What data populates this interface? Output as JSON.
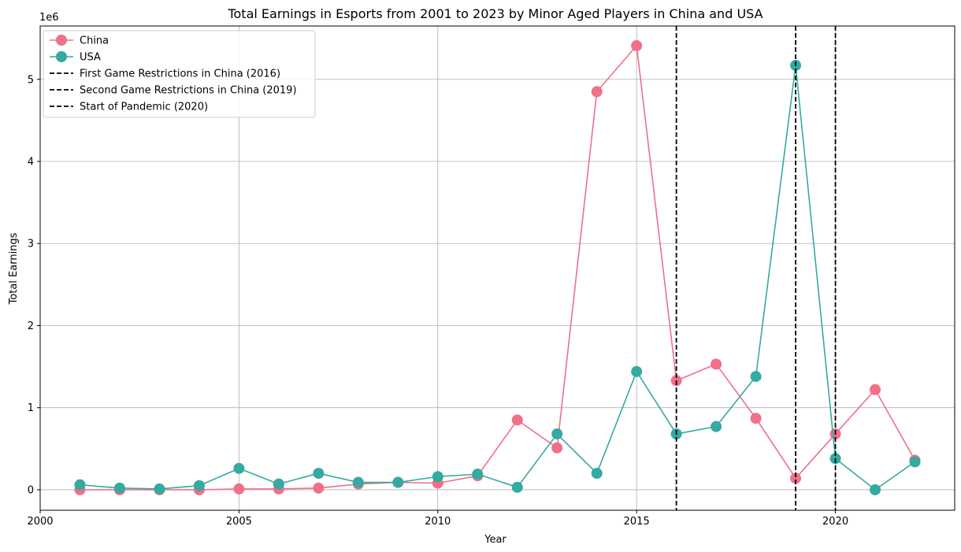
{
  "chart_data": {
    "type": "line",
    "title": "Total Earnings in Esports from 2001 to 2023 by Minor Aged Players in China and USA",
    "xlabel": "Year",
    "ylabel": "Total Earnings",
    "y_scale_label": "1e6",
    "xlim": [
      2000,
      2023
    ],
    "ylim": [
      -250000,
      5650000
    ],
    "x_ticks": [
      2000,
      2005,
      2010,
      2015,
      2020
    ],
    "y_ticks": [
      0,
      1000000,
      2000000,
      3000000,
      4000000,
      5000000
    ],
    "y_tick_labels": [
      "0",
      "1",
      "2",
      "3",
      "4",
      "5"
    ],
    "grid": true,
    "legend_position": "top-left",
    "x": [
      2001,
      2002,
      2003,
      2004,
      2005,
      2006,
      2007,
      2008,
      2009,
      2010,
      2011,
      2012,
      2013,
      2014,
      2015,
      2016,
      2017,
      2018,
      2019,
      2020,
      2021,
      2022
    ],
    "series": [
      {
        "name": "China",
        "color": "#f07089",
        "values": [
          0,
          0,
          0,
          0,
          10000,
          10000,
          20000,
          70000,
          90000,
          80000,
          170000,
          850000,
          510000,
          4850000,
          5410000,
          1330000,
          1530000,
          870000,
          140000,
          680000,
          1220000,
          360000
        ]
      },
      {
        "name": "USA",
        "color": "#34aaa0",
        "values": [
          60000,
          20000,
          10000,
          50000,
          260000,
          70000,
          200000,
          90000,
          90000,
          160000,
          190000,
          30000,
          680000,
          200000,
          1440000,
          680000,
          770000,
          1380000,
          5170000,
          380000,
          0,
          340000
        ]
      }
    ],
    "vlines": [
      {
        "name": "First Game Restrictions in China (2016)",
        "x": 2016,
        "color": "#000000",
        "style": "dashed"
      },
      {
        "name": "Second Game Restrictions in China (2019)",
        "x": 2019,
        "color": "#000000",
        "style": "dashed"
      },
      {
        "name": "Start of Pandemic (2020)",
        "x": 2020,
        "color": "#000000",
        "style": "dashed"
      }
    ]
  }
}
